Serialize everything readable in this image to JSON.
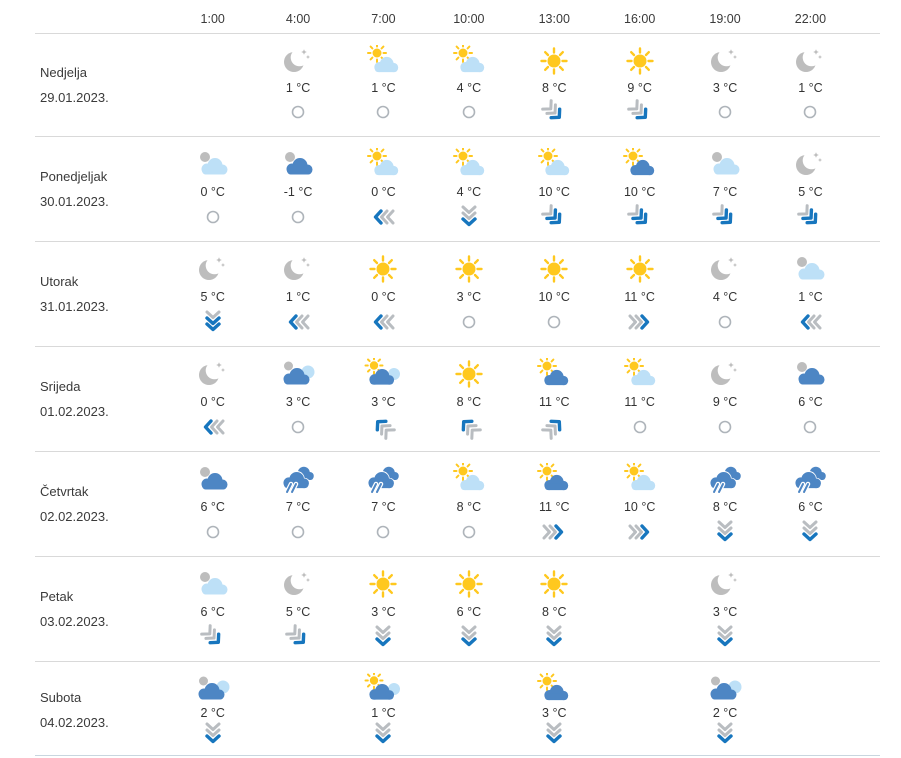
{
  "page": {
    "background": "#ffffff",
    "language": "hr"
  },
  "colors": {
    "accent_blue": "#1776BE",
    "cloud_light": "#BDE0F7",
    "cloud_dark": "#4D86C4",
    "cloud_gray": "#BDBDBD",
    "sun_yellow": "#FFC81E",
    "wind_gray": "#B9BDC1",
    "calm_ring": "#AEB4BA",
    "separator": "#D9D9D9",
    "text": "#3A3A3A"
  },
  "table": {
    "time_columns": [
      "1:00",
      "4:00",
      "7:00",
      "10:00",
      "13:00",
      "16:00",
      "19:00",
      "22:00"
    ],
    "temperature_unit": "°C",
    "days": [
      {
        "name": "Nedjelja",
        "date": "29.01.2023.",
        "cells": [
          null,
          {
            "icon": "clear-night",
            "temp": "1 °C",
            "wind": {
              "dir": "calm"
            }
          },
          {
            "icon": "partly-cloudy",
            "temp": "1 °C",
            "wind": {
              "dir": "calm"
            }
          },
          {
            "icon": "partly-cloudy",
            "temp": "4 °C",
            "wind": {
              "dir": "calm"
            }
          },
          {
            "icon": "sunny",
            "temp": "8 °C",
            "wind": {
              "dir": "down-right",
              "strength": 1
            }
          },
          {
            "icon": "sunny",
            "temp": "9 °C",
            "wind": {
              "dir": "down-right",
              "strength": 1
            }
          },
          {
            "icon": "clear-night",
            "temp": "3 °C",
            "wind": {
              "dir": "calm"
            }
          },
          {
            "icon": "clear-night",
            "temp": "1 °C",
            "wind": {
              "dir": "calm"
            }
          }
        ]
      },
      {
        "name": "Ponedjeljak",
        "date": "30.01.2023.",
        "cells": [
          {
            "icon": "cloudy-light",
            "temp": "0 °C",
            "wind": {
              "dir": "calm"
            }
          },
          {
            "icon": "cloudy-dark",
            "temp": "-1 °C",
            "wind": {
              "dir": "calm"
            }
          },
          {
            "icon": "partly-cloudy",
            "temp": "0 °C",
            "wind": {
              "dir": "left",
              "strength": 1
            }
          },
          {
            "icon": "partly-cloudy",
            "temp": "4 °C",
            "wind": {
              "dir": "down",
              "strength": 1
            }
          },
          {
            "icon": "partly-cloudy",
            "temp": "10 °C",
            "wind": {
              "dir": "down-right",
              "strength": 2
            }
          },
          {
            "icon": "partly-cloudy-dark",
            "temp": "10 °C",
            "wind": {
              "dir": "down-right",
              "strength": 2
            }
          },
          {
            "icon": "cloudy-light",
            "temp": "7 °C",
            "wind": {
              "dir": "down-right",
              "strength": 2
            }
          },
          {
            "icon": "clear-night",
            "temp": "5 °C",
            "wind": {
              "dir": "down-right",
              "strength": 2
            }
          }
        ]
      },
      {
        "name": "Utorak",
        "date": "31.01.2023.",
        "cells": [
          {
            "icon": "clear-night",
            "temp": "5 °C",
            "wind": {
              "dir": "down",
              "strength": 2
            }
          },
          {
            "icon": "clear-night",
            "temp": "1 °C",
            "wind": {
              "dir": "left",
              "strength": 1
            }
          },
          {
            "icon": "sunny",
            "temp": "0 °C",
            "wind": {
              "dir": "left",
              "strength": 1
            }
          },
          {
            "icon": "sunny",
            "temp": "3 °C",
            "wind": {
              "dir": "calm"
            }
          },
          {
            "icon": "sunny",
            "temp": "10 °C",
            "wind": {
              "dir": "calm"
            }
          },
          {
            "icon": "sunny",
            "temp": "11 °C",
            "wind": {
              "dir": "right",
              "strength": 1
            }
          },
          {
            "icon": "clear-night",
            "temp": "4 °C",
            "wind": {
              "dir": "calm"
            }
          },
          {
            "icon": "cloudy-light",
            "temp": "1 °C",
            "wind": {
              "dir": "left",
              "strength": 1
            }
          }
        ]
      },
      {
        "name": "Srijeda",
        "date": "01.02.2023.",
        "cells": [
          {
            "icon": "clear-night",
            "temp": "0 °C",
            "wind": {
              "dir": "left",
              "strength": 1
            }
          },
          {
            "icon": "cloudy-dark-light",
            "temp": "3 °C",
            "wind": {
              "dir": "calm"
            }
          },
          {
            "icon": "partly-cloudy-dark-light",
            "temp": "3 °C",
            "wind": {
              "dir": "up-left",
              "strength": 1
            }
          },
          {
            "icon": "sunny",
            "temp": "8 °C",
            "wind": {
              "dir": "up-left",
              "strength": 1
            }
          },
          {
            "icon": "partly-cloudy-dark",
            "temp": "11 °C",
            "wind": {
              "dir": "up-right",
              "strength": 1
            }
          },
          {
            "icon": "partly-cloudy",
            "temp": "11 °C",
            "wind": {
              "dir": "calm"
            }
          },
          {
            "icon": "clear-night",
            "temp": "9 °C",
            "wind": {
              "dir": "calm"
            }
          },
          {
            "icon": "cloudy-dark",
            "temp": "6 °C",
            "wind": {
              "dir": "calm"
            }
          }
        ]
      },
      {
        "name": "Četvrtak",
        "date": "02.02.2023.",
        "cells": [
          {
            "icon": "cloudy-dark",
            "temp": "6 °C",
            "wind": {
              "dir": "calm"
            }
          },
          {
            "icon": "rain",
            "temp": "7 °C",
            "wind": {
              "dir": "calm"
            }
          },
          {
            "icon": "rain",
            "temp": "7 °C",
            "wind": {
              "dir": "calm"
            }
          },
          {
            "icon": "partly-cloudy",
            "temp": "8 °C",
            "wind": {
              "dir": "calm"
            }
          },
          {
            "icon": "partly-cloudy-dark",
            "temp": "11 °C",
            "wind": {
              "dir": "right",
              "strength": 1
            }
          },
          {
            "icon": "partly-cloudy",
            "temp": "10 °C",
            "wind": {
              "dir": "right",
              "strength": 1
            }
          },
          {
            "icon": "rain",
            "temp": "8 °C",
            "wind": {
              "dir": "down",
              "strength": 1
            }
          },
          {
            "icon": "rain",
            "temp": "6 °C",
            "wind": {
              "dir": "down",
              "strength": 1
            }
          }
        ]
      },
      {
        "name": "Petak",
        "date": "03.02.2023.",
        "cells": [
          {
            "icon": "cloudy-light",
            "temp": "6 °C",
            "wind": {
              "dir": "down-right",
              "strength": 1
            }
          },
          {
            "icon": "clear-night",
            "temp": "5 °C",
            "wind": {
              "dir": "down-right",
              "strength": 1
            }
          },
          {
            "icon": "sunny",
            "temp": "3 °C",
            "wind": {
              "dir": "down",
              "strength": 1
            }
          },
          {
            "icon": "sunny",
            "temp": "6 °C",
            "wind": {
              "dir": "down",
              "strength": 1
            }
          },
          {
            "icon": "sunny",
            "temp": "8 °C",
            "wind": {
              "dir": "down",
              "strength": 1
            }
          },
          null,
          {
            "icon": "clear-night",
            "temp": "3 °C",
            "wind": {
              "dir": "down",
              "strength": 1
            }
          },
          null
        ]
      },
      {
        "name": "Subota",
        "date": "04.02.2023.",
        "cells": [
          {
            "icon": "cloudy-dark-light",
            "temp": "2 °C",
            "wind": {
              "dir": "down",
              "strength": 1
            }
          },
          null,
          {
            "icon": "partly-cloudy-dark-light",
            "temp": "1 °C",
            "wind": {
              "dir": "down",
              "strength": 1
            }
          },
          null,
          {
            "icon": "partly-cloudy-dark",
            "temp": "3 °C",
            "wind": {
              "dir": "down",
              "strength": 1
            }
          },
          null,
          {
            "icon": "cloudy-dark-light",
            "temp": "2 °C",
            "wind": {
              "dir": "down",
              "strength": 1
            }
          },
          null
        ]
      }
    ]
  }
}
